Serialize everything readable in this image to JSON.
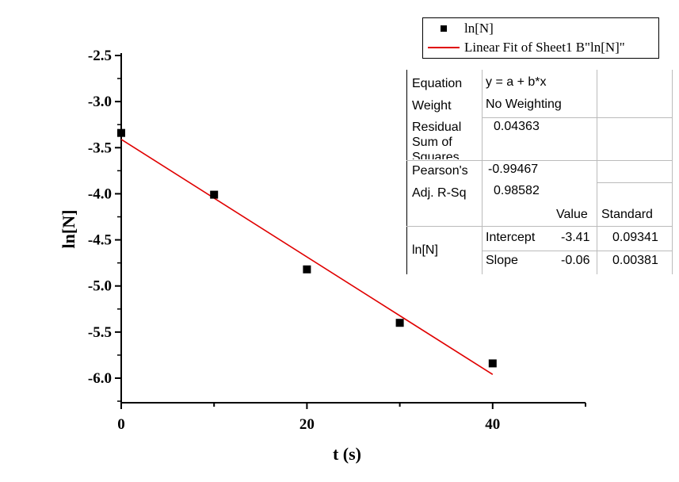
{
  "chart_data": {
    "type": "scatter",
    "title": "",
    "xlabel": "t (s)",
    "ylabel": "ln[N]",
    "xlim": [
      0,
      50
    ],
    "ylim": [
      -6.27,
      -2.5
    ],
    "xticks": [
      0,
      20,
      40
    ],
    "xtick_labels": [
      "0",
      "20",
      "40"
    ],
    "yticks": [
      -2.5,
      -3.0,
      -3.5,
      -4.0,
      -4.5,
      -5.0,
      -5.5,
      -6.0
    ],
    "ytick_labels": [
      "-2.5",
      "-3.0",
      "-3.5",
      "-4.0",
      "-4.5",
      "-5.0",
      "-5.5",
      "-6.0"
    ],
    "grid": false,
    "legend_position": "top-right",
    "series": [
      {
        "name": "ln[N]",
        "kind": "scatter",
        "color": "#000000",
        "x": [
          0,
          10,
          20,
          30,
          40
        ],
        "y": [
          -3.34,
          -4.01,
          -4.82,
          -5.4,
          -5.84
        ]
      },
      {
        "name": "Linear Fit of Sheet1 B\"ln[N]\"",
        "kind": "line",
        "color": "#e00000",
        "x": [
          0,
          40
        ],
        "y": [
          -3.41,
          -5.96
        ]
      }
    ]
  },
  "fit_table": {
    "equation_label": "Equation",
    "equation": "y = a + b*x",
    "weight_label": "Weight",
    "weight": "No Weighting",
    "rss_label": "Residual Sum of Squares",
    "rss": "0.04363",
    "pearson_label": "Pearson's",
    "pearson": "-0.99467",
    "adjr_label": "Adj. R-Sq",
    "adjr": "0.98582",
    "col_value": "Value",
    "col_standard": "Standard",
    "group": "ln[N]",
    "rows": [
      {
        "name": "Intercept",
        "value": "-3.41",
        "se": "0.09341"
      },
      {
        "name": "Slope",
        "value": "-0.06",
        "se": "0.00381"
      }
    ]
  }
}
